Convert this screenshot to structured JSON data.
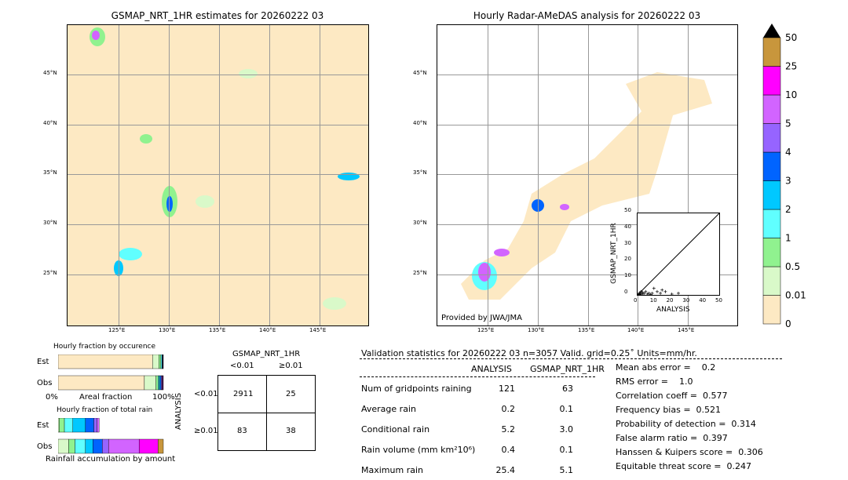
{
  "left_map": {
    "title": "GSMAP_NRT_1HR estimates for 20260222 03",
    "lat_labels": [
      "45°N",
      "40°N",
      "35°N",
      "30°N",
      "25°N"
    ],
    "lon_labels": [
      "125°E",
      "130°E",
      "135°E",
      "140°E",
      "145°E"
    ]
  },
  "right_map": {
    "title": "Hourly Radar-AMeDAS analysis for 20260222 03",
    "credit": "Provided by JWA/JMA",
    "lat_labels": [
      "45°N",
      "40°N",
      "35°N",
      "30°N",
      "25°N"
    ],
    "lon_labels": [
      "125°E",
      "130°E",
      "135°E",
      "140°E",
      "145°E"
    ]
  },
  "colorbar": {
    "levels": [
      "0",
      "0.01",
      "0.5",
      "1",
      "2",
      "3",
      "4",
      "5",
      "10",
      "25",
      "50"
    ],
    "colors": [
      "#fde9c3",
      "#d9f9c9",
      "#90f28f",
      "#60ffff",
      "#00c8ff",
      "#0064ff",
      "#9664ff",
      "#d264ff",
      "#ff00ff",
      "#c8963c"
    ],
    "extend_color": "#000000"
  },
  "chart_data": [
    {
      "type": "scatter",
      "xlabel": "ANALYSIS",
      "ylabel": "GSMAP_NRT_1HR",
      "xlim": [
        0,
        50
      ],
      "ylim": [
        0,
        50
      ],
      "ticks": [
        "0",
        "10",
        "20",
        "30",
        "40",
        "50"
      ],
      "points": [
        [
          0.5,
          0.3
        ],
        [
          1,
          0.5
        ],
        [
          1.5,
          0.2
        ],
        [
          2,
          1
        ],
        [
          3,
          0.5
        ],
        [
          4,
          1
        ],
        [
          5,
          2
        ],
        [
          6,
          0.5
        ],
        [
          7,
          1
        ],
        [
          8,
          0.3
        ],
        [
          9,
          1
        ],
        [
          10,
          4
        ],
        [
          12,
          2
        ],
        [
          14,
          1
        ],
        [
          15,
          3
        ],
        [
          17,
          2
        ],
        [
          21,
          0.5
        ],
        [
          25,
          1
        ],
        [
          2,
          2
        ],
        [
          3,
          1.5
        ],
        [
          1,
          1
        ]
      ]
    },
    {
      "type": "bar",
      "title": "Hourly fraction by occurence",
      "xlabel": "Areal fraction",
      "tick_left": "0%",
      "tick_right": "100%",
      "categories": [
        "Est",
        "Obs"
      ],
      "series": {
        "Est": [
          0.897,
          0.06,
          0.02,
          0.01,
          0.005,
          0.004,
          0.002,
          0.001,
          0.001
        ],
        "Obs": [
          0.82,
          0.11,
          0.02,
          0.01,
          0.01,
          0.01,
          0.007,
          0.006,
          0.005,
          0.002
        ]
      }
    },
    {
      "type": "bar",
      "title": "Hourly fraction of total rain",
      "xlabel": "Rainfall accumulation by amount",
      "categories": [
        "Est",
        "Obs"
      ],
      "series": {
        "Est": [
          0.01,
          0.05,
          0.08,
          0.12,
          0.08,
          0.03,
          0.02
        ],
        "Obs": [
          0.1,
          0.06,
          0.1,
          0.07,
          0.09,
          0.06,
          0.29,
          0.18,
          0.05
        ]
      }
    },
    {
      "type": "table",
      "title": "GSMAP_NRT_1HR",
      "col_labels": [
        "<0.01",
        "≥0.01"
      ],
      "row_title": "ANALYSIS",
      "row_labels": [
        "<0.01",
        "≥0.01"
      ],
      "cells": [
        [
          "2911",
          "25"
        ],
        [
          "83",
          "38"
        ]
      ]
    }
  ],
  "stats": {
    "header": "Validation statistics for 20260222 03  n=3057 Valid. grid=0.25˚ Units=mm/hr.",
    "col1": "ANALYSIS",
    "col2": "GSMAP_NRT_1HR",
    "rows": [
      {
        "label": "Num of gridpoints raining",
        "a": "121",
        "g": "63"
      },
      {
        "label": "Average rain",
        "a": "0.2",
        "g": "0.1"
      },
      {
        "label": "Conditional rain",
        "a": "5.2",
        "g": "3.0"
      },
      {
        "label": "Rain volume (mm km²10⁶)",
        "a": "0.4",
        "g": "0.1"
      },
      {
        "label": "Maximum rain",
        "a": "25.4",
        "g": "5.1"
      }
    ],
    "scores": [
      "Mean abs error =    0.2",
      "RMS error =    1.0",
      "Correlation coeff =  0.577",
      "Frequency bias =  0.521",
      "Probability of detection =  0.314",
      "False alarm ratio =  0.397",
      "Hanssen & Kuipers score =  0.306",
      "Equitable threat score =  0.247"
    ]
  }
}
